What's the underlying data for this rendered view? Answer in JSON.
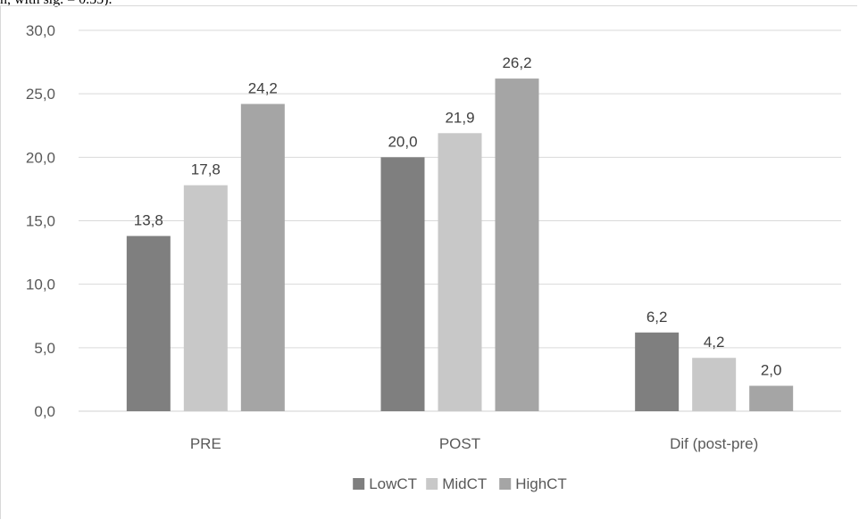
{
  "caption_fragment": "n, with sig. = 0.35).",
  "chart_data": {
    "type": "bar",
    "categories": [
      "PRE",
      "POST",
      "Dif (post-pre)"
    ],
    "series": [
      {
        "name": "LowCT",
        "values": [
          13.8,
          20.0,
          6.2
        ],
        "color": "#7f7f7f"
      },
      {
        "name": "MidCT",
        "values": [
          17.8,
          21.9,
          4.2
        ],
        "color": "#c8c8c8"
      },
      {
        "name": "HighCT",
        "values": [
          24.2,
          26.2,
          2.0
        ],
        "color": "#a5a5a5"
      }
    ],
    "data_labels": [
      [
        "13,8",
        "20,0",
        "6,2"
      ],
      [
        "17,8",
        "21,9",
        "4,2"
      ],
      [
        "24,2",
        "26,2",
        "2,0"
      ]
    ],
    "yticks": [
      "0,0",
      "5,0",
      "10,0",
      "15,0",
      "20,0",
      "25,0",
      "30,0"
    ],
    "ylim": [
      0,
      30
    ],
    "grid": true,
    "legend_position": "bottom"
  }
}
